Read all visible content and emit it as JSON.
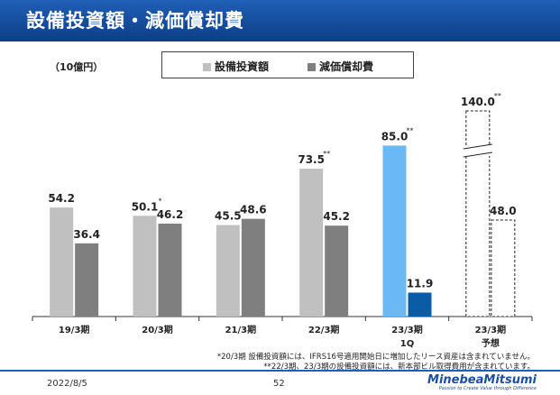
{
  "page": {
    "title": "設備投資額・減価償却費",
    "unit": "（10億円）",
    "date": "2022/8/5",
    "page_number": "52",
    "logo": {
      "main": "MinebeaMitsumi",
      "sub": "Passion to Create Value through Difference"
    },
    "footnotes": [
      "*20/3期 設備投資額には、IFRS16号適用開始日に増加したリース資産は含まれていません。",
      "**22/3期、23/3期の設備投資額には、新本部ビル取得費用が含まれています。"
    ]
  },
  "colors": {
    "header": "#1f5fb6",
    "capex": "#c0c0c0",
    "depreciation": "#7f7f7f",
    "capex_1q": "#6ab8f4",
    "depreciation_1q": "#0b5ca6"
  },
  "chart_data": {
    "type": "bar",
    "categories": [
      "19/3期",
      "20/3期",
      "21/3期",
      "22/3期",
      "23/3期",
      "23/3期"
    ],
    "category_sublabels": [
      "",
      "",
      "",
      "",
      "1Q",
      "予想"
    ],
    "series": [
      {
        "name": "設備投資額",
        "values": [
          54.2,
          50.1,
          45.5,
          73.5,
          85.0,
          140.0
        ],
        "labels": [
          "54.2",
          "50.1",
          "45.5",
          "73.5",
          "85.0",
          "140.0"
        ],
        "marks": [
          "",
          "*",
          "",
          "**",
          "**",
          "**"
        ]
      },
      {
        "name": "減価償却費",
        "values": [
          36.4,
          46.2,
          48.6,
          45.2,
          11.9,
          48.0
        ],
        "labels": [
          "36.4",
          "46.2",
          "48.6",
          "45.2",
          "11.9",
          "48.0"
        ],
        "marks": [
          "",
          "",
          "",
          "",
          "",
          ""
        ]
      }
    ],
    "styles": [
      "solid",
      "solid",
      "solid",
      "solid",
      "highlight",
      "forecast"
    ],
    "axis_break": {
      "category_index": 5,
      "series_index": 0
    },
    "ylim": [
      0,
      100
    ]
  }
}
